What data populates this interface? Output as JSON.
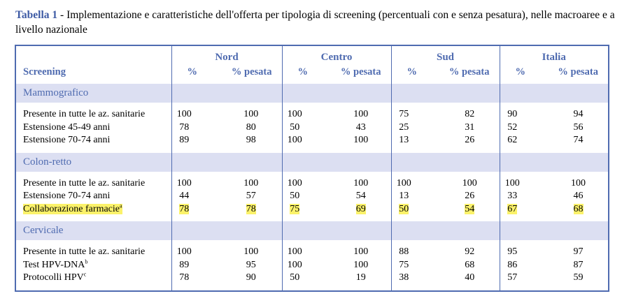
{
  "caption": {
    "label": "Tabella 1",
    "text": " - Implementazione e caratteristiche dell'offerta per tipologia di screening  (percentuali con e senza pesatura), nelle macroaree e a livello nazionale"
  },
  "table": {
    "row_header": "Screening",
    "regions": [
      "Nord",
      "Centro",
      "Sud",
      "Italia"
    ],
    "sub_pct": "%",
    "sub_weighted": "% pesata",
    "sections": [
      {
        "name": "Mammografico",
        "rows": [
          {
            "label": "Presente in tutte le az. sanitarie",
            "sup": "",
            "values": [
              "100",
              "100",
              "100",
              "100",
              "75",
              "82",
              "90",
              "94"
            ]
          },
          {
            "label": "Estensione 45-49 anni",
            "sup": "",
            "values": [
              "78",
              "80",
              "50",
              "43",
              "25",
              "31",
              "52",
              "56"
            ]
          },
          {
            "label": "Estensione 70-74 anni",
            "sup": "",
            "values": [
              "89",
              "98",
              "100",
              "100",
              "13",
              "26",
              "62",
              "74"
            ]
          }
        ]
      },
      {
        "name": "Colon-retto",
        "rows": [
          {
            "label": "Presente in tutte le az. sanitarie",
            "sup": "",
            "values": [
              "100",
              "100",
              "100",
              "100",
              "100",
              "100",
              "100",
              "100"
            ]
          },
          {
            "label": "Estensione 70-74 anni",
            "sup": "",
            "values": [
              "44",
              "57",
              "50",
              "54",
              "13",
              "26",
              "33",
              "46"
            ]
          },
          {
            "label": "Collaborazione farmacie",
            "sup": "a",
            "values": [
              "78",
              "78",
              "75",
              "69",
              "50",
              "54",
              "67",
              "68"
            ],
            "highlight": true
          }
        ]
      },
      {
        "name": "Cervicale",
        "rows": [
          {
            "label": "Presente in tutte le az. sanitarie",
            "sup": "",
            "values": [
              "100",
              "100",
              "100",
              "100",
              "88",
              "92",
              "95",
              "97"
            ]
          },
          {
            "label": "Test HPV-DNA",
            "sup": "b",
            "values": [
              "89",
              "95",
              "100",
              "100",
              "75",
              "68",
              "86",
              "87"
            ]
          },
          {
            "label": "Protocolli  HPV",
            "sup": "c",
            "values": [
              "78",
              "90",
              "50",
              "19",
              "38",
              "40",
              "57",
              "59"
            ]
          }
        ]
      }
    ]
  },
  "colors": {
    "accent": "#4f6bb0",
    "section_bg": "#dcdff2",
    "highlight": "#fbf26a"
  }
}
